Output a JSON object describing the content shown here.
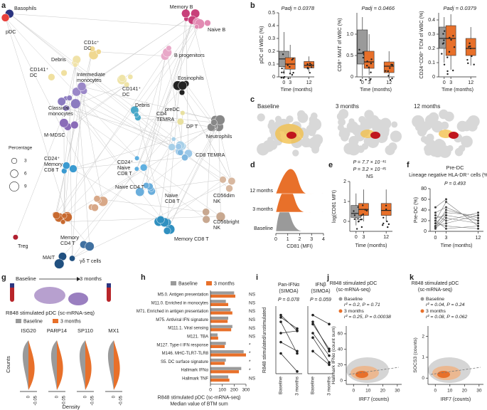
{
  "panel_labels": [
    "a",
    "b",
    "c",
    "d",
    "e",
    "f",
    "g",
    "h",
    "i",
    "j",
    "k"
  ],
  "a": {
    "clusters": [
      {
        "label": [
          "Basophils"
        ],
        "color": "#2c3580"
      },
      {
        "label": [
          "pDC"
        ],
        "color": "#e8413c"
      },
      {
        "label": [
          "Memory B"
        ],
        "color": "#c8407a"
      },
      {
        "label": [
          "Naive B"
        ],
        "color": "#e28bb3"
      },
      {
        "label": [
          "CD1c⁺",
          "DC"
        ],
        "color": "#f0d890"
      },
      {
        "label": [
          "B progenitors"
        ],
        "color": "#e8a8c8"
      },
      {
        "label": [
          "CD141⁺",
          "DC"
        ],
        "color": "#f0e0a0"
      },
      {
        "label": [
          "Debris"
        ],
        "color": "#f0e2a8"
      },
      {
        "label": [
          "Intermediate",
          "monocytes"
        ],
        "color": "#9b88c8"
      },
      {
        "label": [
          "CD141⁺",
          "DC"
        ],
        "color": "#efe4a8"
      },
      {
        "label": [
          "Eosinophils"
        ],
        "color": "#222222"
      },
      {
        "label": [
          "Classical",
          "monocytes"
        ],
        "color": "#8c7cc0"
      },
      {
        "label": [
          "Debris"
        ],
        "color": "#4aa8c8"
      },
      {
        "label": [
          "preDC"
        ],
        "color": "#e8e0a0"
      },
      {
        "label": [
          "Neutrophils"
        ],
        "color": "#888888"
      },
      {
        "label": [
          "M-MDSC"
        ],
        "color": "#8a6cb8"
      },
      {
        "label": [
          "CD4",
          "TEMRA"
        ],
        "color": "#a8d0e8"
      },
      {
        "label": [
          "DP T"
        ],
        "color": "#9cc8e8"
      },
      {
        "label": [
          "CD24⁺",
          "Memory",
          "CD8 T"
        ],
        "color": "#3a9ad0"
      },
      {
        "label": [
          "CD24⁺",
          "Naive",
          "CD8 T"
        ],
        "color": "#60b0e0"
      },
      {
        "label": [
          "CD8 TEMRA"
        ],
        "color": "#80b8e0"
      },
      {
        "label": [
          "Naive CD4 T"
        ],
        "color": "#d8a888"
      },
      {
        "label": [
          "Naive",
          "CD8 T"
        ],
        "color": "#6aaedc"
      },
      {
        "label": [
          "CD56dim",
          "NK"
        ],
        "color": "#d8b8a0"
      },
      {
        "label": [
          "Memory",
          "CD4 T"
        ],
        "color": "#c86a30"
      },
      {
        "label": [
          "Treg"
        ],
        "color": "#b02030"
      },
      {
        "label": [
          "CD56bright",
          "NK"
        ],
        "color": "#c8a890"
      },
      {
        "label": [
          "Memory CD8 T"
        ],
        "color": "#3090c0"
      },
      {
        "label": [
          "MAIT"
        ],
        "color": "#205080"
      },
      {
        "label": [
          "γδ T cells"
        ],
        "color": "#4070a0"
      }
    ],
    "legend_title": "Percentage",
    "legend_sizes": [
      3,
      6,
      9
    ]
  },
  "b": [
    {
      "ylabel": "pDC of WBC (%)",
      "p": "Padj = 0.0378",
      "xlabel": "Time (months)",
      "xlim": [
        -2.5,
        14.5
      ],
      "xticks": [
        0,
        3,
        12
      ],
      "ylim": [
        0,
        0.5
      ],
      "yticks": [
        0,
        0.1,
        0.2,
        0.3,
        0.4,
        0.5
      ],
      "boxes": [
        {
          "x": 0,
          "low": 0.02,
          "q1": 0.08,
          "median": 0.14,
          "q3": 0.2,
          "high": 0.35,
          "color": "#9a9a9a"
        },
        {
          "x": 3,
          "low": 0.02,
          "q1": 0.06,
          "median": 0.1,
          "q3": 0.15,
          "high": 0.25,
          "color": "#e8702a"
        },
        {
          "x": 12,
          "low": 0.04,
          "q1": 0.07,
          "median": 0.09,
          "q3": 0.12,
          "high": 0.16,
          "color": "#e8702a"
        }
      ]
    },
    {
      "ylabel": "CD8⁺ MAIT of WBC (%)",
      "p": "Padj = 0.0466",
      "xlabel": "Time (months)",
      "xlim": [
        -2.5,
        14.5
      ],
      "xticks": [
        0,
        3,
        12
      ],
      "ylim": [
        0,
        1.5
      ],
      "yticks": [
        0,
        0.5,
        {
          "value": 1,
          "label": "1.0"
        }
      ],
      "boxes": [
        {
          "x": 0,
          "low": 0.02,
          "q1": 0.3,
          "median": 0.55,
          "q3": 1.1,
          "high": 1.4,
          "color": "#9a9a9a"
        },
        {
          "x": 3,
          "low": 0.05,
          "q1": 0.2,
          "median": 0.35,
          "q3": 0.6,
          "high": 1.0,
          "color": "#e8702a"
        },
        {
          "x": 12,
          "low": 0.02,
          "q1": 0.1,
          "median": 0.25,
          "q3": 0.35,
          "high": 0.6,
          "color": "#e8702a"
        }
      ]
    },
    {
      "ylabel": "CD24⁺CD8⁺ TCM of WBC (%)",
      "p": "Padj = 0.0379",
      "xlabel": "Time (months)",
      "xlim": [
        -2.5,
        14.5
      ],
      "xticks": [
        0,
        3,
        12
      ],
      "ylim": [
        0,
        0.45
      ],
      "yticks": [
        0,
        0.1,
        0.2,
        0.3,
        0.4
      ],
      "boxes": [
        {
          "x": 0,
          "low": 0.1,
          "q1": 0.2,
          "median": 0.27,
          "q3": 0.35,
          "high": 0.42,
          "color": "#9a9a9a"
        },
        {
          "x": 3,
          "low": 0.05,
          "q1": 0.15,
          "median": 0.27,
          "q3": 0.36,
          "high": 0.44,
          "color": "#e8702a"
        },
        {
          "x": 12,
          "low": 0.08,
          "q1": 0.15,
          "median": 0.2,
          "q3": 0.27,
          "high": 0.35,
          "color": "#e8702a"
        }
      ]
    }
  ],
  "c": {
    "titles": [
      "Baseline",
      "3 months",
      "12 months"
    ]
  },
  "d": {
    "categories": [
      "Baseline",
      "3 months",
      "12 months"
    ],
    "xlabel": "CD81 (MFI)",
    "xlim": [
      0,
      4
    ],
    "xticks": [
      0,
      1,
      2,
      3,
      4
    ]
  },
  "e": {
    "ylabel": "log(CD81 MFI)",
    "p": [
      "P = 7.7 × 10⁻¹⁵",
      "P = 3.2 × 10⁻²⁵",
      "NS"
    ],
    "xlabel": "Time (months)",
    "xlim": [
      -2.5,
      14.5
    ],
    "xticks": [
      0,
      3,
      12
    ],
    "ylim": [
      -0.5,
      2
    ],
    "yticks": [
      0,
      1,
      2
    ],
    "boxes": [
      {
        "x": 0,
        "low": -0.2,
        "q1": 0.2,
        "median": 0.4,
        "q3": 0.8,
        "high": 1.4,
        "color": "#9a9a9a"
      },
      {
        "x": 3,
        "low": 0,
        "q1": 0.3,
        "median": 0.6,
        "q3": 0.9,
        "high": 1.6,
        "color": "#e8702a"
      },
      {
        "x": 12,
        "low": 0,
        "q1": 0.3,
        "median": 0.55,
        "q3": 0.9,
        "high": 1.6,
        "color": "#e8702a"
      }
    ]
  },
  "f": {
    "title": "Pre-DC",
    "subtitle": "Lineage negative HLA-DR⁺ cells (%)",
    "p": "P = 0.493",
    "ylabel": "Pre-DC (%)",
    "xlabel": "Time (months)",
    "x": [
      0,
      3,
      12
    ],
    "xlim": [
      -1.5,
      13.5
    ],
    "xticks": [
      0,
      3,
      12
    ],
    "ylim": [
      0,
      80
    ],
    "yticks": [
      0,
      20,
      40,
      60,
      80
    ],
    "color": "#333333",
    "series": [
      {
        "values": [
          45,
          60,
          null
        ]
      },
      {
        "values": [
          20,
          55,
          10
        ]
      },
      {
        "values": [
          15,
          35,
          30
        ]
      },
      {
        "values": [
          10,
          40,
          25
        ]
      },
      {
        "values": [
          25,
          30,
          20
        ]
      },
      {
        "values": [
          30,
          20,
          35
        ]
      },
      {
        "values": [
          5,
          25,
          15
        ]
      },
      {
        "values": [
          15,
          10,
          5
        ]
      },
      {
        "values": [
          35,
          45,
          20
        ]
      },
      {
        "values": [
          10,
          15,
          30
        ]
      },
      {
        "values": [
          20,
          5,
          10
        ]
      },
      {
        "values": [
          8,
          30,
          null
        ]
      }
    ]
  },
  "g": {
    "top": [
      "Baseline",
      "3 months"
    ],
    "title": "R848 stimulated pDC (sc-mRNA-seq)",
    "legend": [
      {
        "name": "Baseline",
        "color": "#9a9a9a"
      },
      {
        "name": "3 months",
        "color": "#e8702a"
      }
    ],
    "genes": [
      "ISG20",
      "PARP14",
      "SP110",
      "MX1"
    ],
    "ylabel": "Counts",
    "xlabel": "Density",
    "xtick_labels": [
      "0",
      "-0.05"
    ]
  },
  "h": {
    "type": "bar",
    "categories": [
      "M5.0. Antigen presentation",
      "M11.0. Enriched in monocytes",
      "M71. Enriched in antigen presentation",
      "M75. Antiviral IFN signature",
      "M111.1. Viral sensing",
      "M121. TBA",
      "M127. Type-I IFN response",
      "M146. MHC-TLR7-TLR8",
      "S5. DC surface signature",
      "Hallmark IFNα",
      "Hallmark TNF"
    ],
    "series": [
      {
        "name": "Baseline",
        "color": "#9a9a9a",
        "values": [
          200,
          130,
          170,
          150,
          185,
          60,
          130,
          280,
          130,
          260,
          150
        ]
      },
      {
        "name": "3 months",
        "color": "#e8702a",
        "values": [
          210,
          150,
          185,
          145,
          175,
          65,
          120,
          300,
          120,
          240,
          160
        ]
      }
    ],
    "significance": [
      "NS",
      "NS",
      "NS",
      "NS",
      "NS",
      "NS",
      "*",
      "*",
      "*",
      "*",
      "NS"
    ],
    "xlim": [
      0,
      300
    ],
    "xticks": [
      0,
      100,
      200,
      300
    ],
    "xlabel": [
      "R848 stimulated pDC (sc-mRNA-seq)",
      "Median value of BTM sum"
    ]
  },
  "i": {
    "ylabel": "R848 stimulated/unstimulated",
    "ylim": [
      0,
      3
    ],
    "plots": [
      {
        "title": [
          "Pan-IFNα",
          "(SIMOA)"
        ],
        "p": "P = 0.078",
        "categories": [
          "Baseline",
          "3 months"
        ],
        "series": [
          {
            "values": [
              2.6,
              1.9
            ]
          },
          {
            "values": [
              2.5,
              2.0
            ]
          },
          {
            "values": [
              2.3,
              0.9
            ]
          },
          {
            "values": [
              1.8,
              1.9
            ]
          },
          {
            "values": [
              1.4,
              1.0
            ]
          },
          {
            "values": [
              0.9,
              0.1
            ]
          }
        ]
      },
      {
        "title": [
          "IFNβ",
          "(SIMOA)"
        ],
        "p": "P = 0.059",
        "categories": [
          "Baseline",
          "3 months"
        ],
        "series": [
          {
            "values": [
              2.6,
              2.2
            ]
          },
          {
            "values": [
              2.3,
              1.0
            ]
          },
          {
            "values": [
              2.2,
              1.1
            ]
          },
          {
            "values": [
              1.8,
              0.8
            ]
          },
          {
            "values": [
              1.6,
              0.5
            ]
          },
          {
            "values": [
              1.0,
              0.4
            ]
          }
        ]
      }
    ]
  },
  "jk": [
    {
      "title": [
        "R848 stimulated pDC",
        "(sc-mRNA-seq)"
      ],
      "legend": [
        {
          "name": "Baseline",
          "stat": "r² = 0.2, P = 0.71",
          "color": "#9a9a9a"
        },
        {
          "name": "3 months",
          "stat": "r² = 0.25, P = 0.00038",
          "color": "#e8702a"
        }
      ],
      "ylabel": "Hallmark IFNα (count sum)",
      "xlabel": "IRF7 (counts)",
      "xlim": [
        -5,
        33
      ],
      "xticks": [
        0,
        10,
        20,
        30
      ],
      "ylim": [
        -5,
        70
      ],
      "yticks": [
        0,
        20,
        40,
        60
      ]
    },
    {
      "title": [
        "R848 stimulated pDC",
        "(sc-mRNA-seq)"
      ],
      "legend": [
        {
          "name": "Baseline",
          "stat": "r² = 0.04, P = 0.24",
          "color": "#9a9a9a"
        },
        {
          "name": "3 months",
          "stat": "r² = 0.08, P = 0.062",
          "color": "#e8702a"
        }
      ],
      "ylabel": "SOCS3 (counts)",
      "xlabel": "IRF7 (counts)",
      "xlim": [
        -5,
        33
      ],
      "xticks": [
        0,
        10,
        20,
        30
      ],
      "ylim": [
        -0.3,
        2.5
      ],
      "yticks": [
        0,
        1,
        2
      ]
    }
  ]
}
